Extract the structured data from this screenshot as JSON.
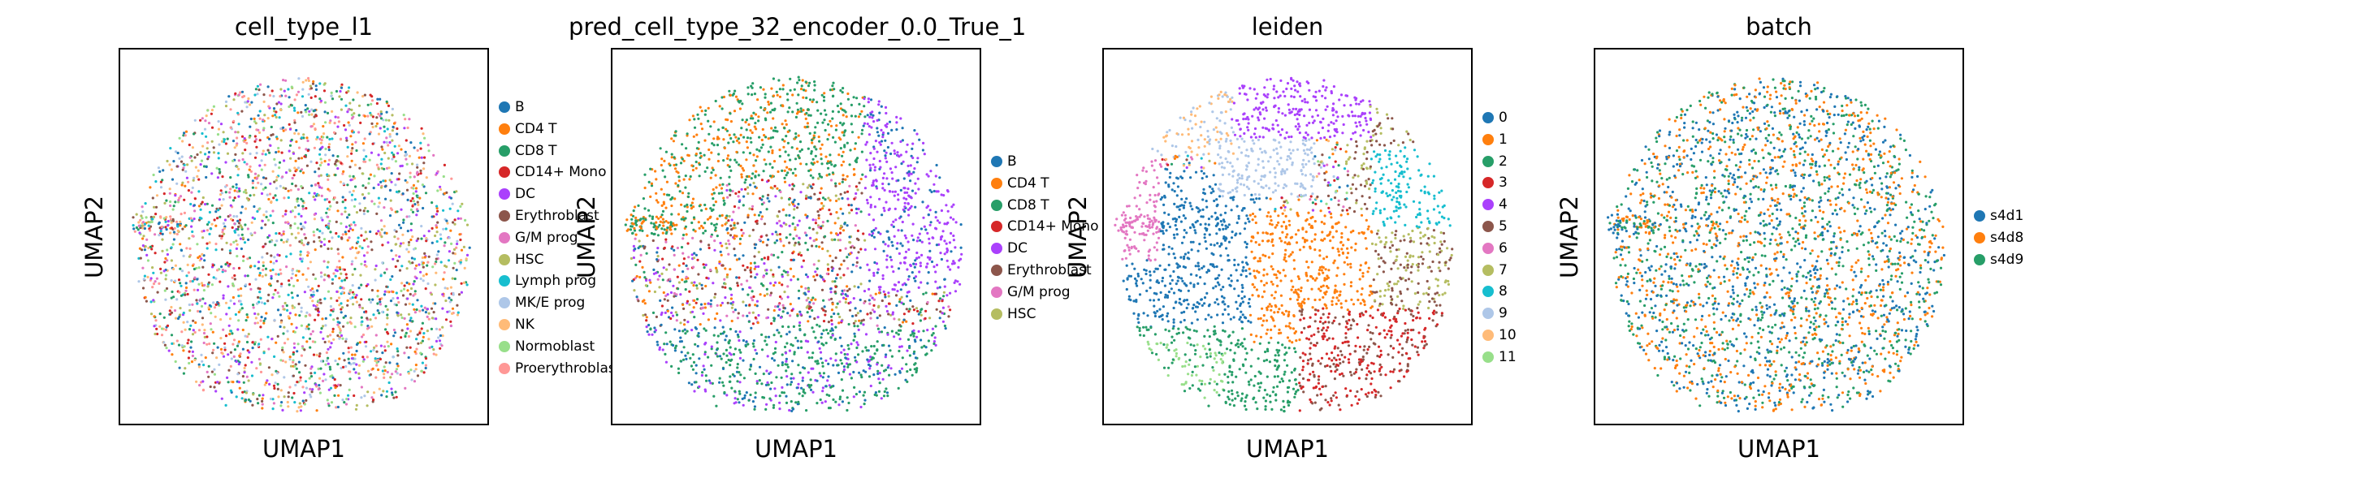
{
  "chart_data": [
    {
      "type": "scatter",
      "title": "cell_type_l1",
      "xlabel": "UMAP1",
      "ylabel": "UMAP2",
      "legend_position": "right",
      "categories": [
        {
          "name": "B",
          "color": "#1f77b4"
        },
        {
          "name": "CD4 T",
          "color": "#ff7f0e"
        },
        {
          "name": "CD8 T",
          "color": "#279e68"
        },
        {
          "name": "CD14+ Mono",
          "color": "#d62728"
        },
        {
          "name": "DC",
          "color": "#aa40fc"
        },
        {
          "name": "Erythroblast",
          "color": "#8c564b"
        },
        {
          "name": "G/M prog",
          "color": "#e377c2"
        },
        {
          "name": "HSC",
          "color": "#b5bd61"
        },
        {
          "name": "Lymph prog",
          "color": "#17becf"
        },
        {
          "name": "MK/E prog",
          "color": "#aec7e8"
        },
        {
          "name": "NK",
          "color": "#ffbb78"
        },
        {
          "name": "Normoblast",
          "color": "#98df8a"
        },
        {
          "name": "Proerythroblast",
          "color": "#ff9896"
        }
      ]
    },
    {
      "type": "scatter",
      "title": "pred_cell_type_32_encoder_0.0_True_1",
      "xlabel": "UMAP1",
      "ylabel": "UMAP2",
      "legend_position": "right",
      "categories": [
        {
          "name": "B",
          "color": "#1f77b4"
        },
        {
          "name": "CD4 T",
          "color": "#ff7f0e"
        },
        {
          "name": "CD8 T",
          "color": "#279e68"
        },
        {
          "name": "CD14+ Mono",
          "color": "#d62728"
        },
        {
          "name": "DC",
          "color": "#aa40fc"
        },
        {
          "name": "Erythroblast",
          "color": "#8c564b"
        },
        {
          "name": "G/M prog",
          "color": "#e377c2"
        },
        {
          "name": "HSC",
          "color": "#b5bd61"
        }
      ]
    },
    {
      "type": "scatter",
      "title": "leiden",
      "xlabel": "UMAP1",
      "ylabel": "UMAP2",
      "legend_position": "right",
      "categories": [
        {
          "name": "0",
          "color": "#1f77b4"
        },
        {
          "name": "1",
          "color": "#ff7f0e"
        },
        {
          "name": "2",
          "color": "#279e68"
        },
        {
          "name": "3",
          "color": "#d62728"
        },
        {
          "name": "4",
          "color": "#aa40fc"
        },
        {
          "name": "5",
          "color": "#8c564b"
        },
        {
          "name": "6",
          "color": "#e377c2"
        },
        {
          "name": "7",
          "color": "#b5bd61"
        },
        {
          "name": "8",
          "color": "#17becf"
        },
        {
          "name": "9",
          "color": "#aec7e8"
        },
        {
          "name": "10",
          "color": "#ffbb78"
        },
        {
          "name": "11",
          "color": "#98df8a"
        }
      ]
    },
    {
      "type": "scatter",
      "title": "batch",
      "xlabel": "UMAP1",
      "ylabel": "UMAP2",
      "legend_position": "right",
      "categories": [
        {
          "name": "s4d1",
          "color": "#1f77b4"
        },
        {
          "name": "s4d8",
          "color": "#ff7f0e"
        },
        {
          "name": "s4d9",
          "color": "#279e68"
        }
      ]
    }
  ]
}
